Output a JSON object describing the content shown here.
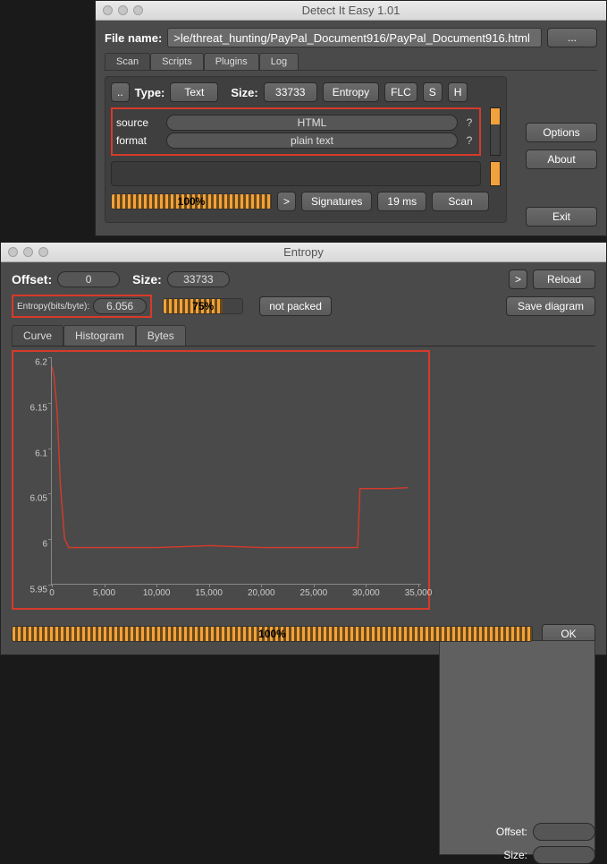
{
  "window1": {
    "title": "Detect It Easy 1.01",
    "file_label": "File name:",
    "file_value": ">le/threat_hunting/PayPal_Document916/PayPal_Document916.html",
    "file_browse": "...",
    "tabs": [
      "Scan",
      "Scripts",
      "Plugins",
      "Log"
    ],
    "active_tab": 0,
    "dd_btn": "..",
    "type_label": "Type:",
    "type_value": "Text",
    "size_label": "Size:",
    "size_value": "33733",
    "entropy_btn": "Entropy",
    "flc_btn": "FLC",
    "s_btn": "S",
    "h_btn": "H",
    "results": [
      {
        "label": "source",
        "value": "HTML"
      },
      {
        "label": "format",
        "value": "plain text"
      }
    ],
    "progress_pct": "100%",
    "progress_val": 100,
    "arrow_btn": ">",
    "signatures_btn": "Signatures",
    "time_btn": "19 ms",
    "scan_btn": "Scan",
    "options_btn": "Options",
    "about_btn": "About",
    "exit_btn": "Exit"
  },
  "window2": {
    "title": "Entropy",
    "offset_label": "Offset:",
    "offset_value": "0",
    "size_label": "Size:",
    "size_value": "33733",
    "arrow_btn": ">",
    "reload_btn": "Reload",
    "entropy_label": "Entropy(bits/byte):",
    "entropy_value": "6.056",
    "pct_label": "75%",
    "pct_val": 75,
    "packed_label": "not packed",
    "save_btn": "Save diagram",
    "tabs": [
      "Curve",
      "Histogram",
      "Bytes"
    ],
    "active_tab": 0,
    "chart": {
      "ylim": [
        5.95,
        6.2
      ],
      "yticks": [
        5.95,
        6,
        6.05,
        6.1,
        6.15,
        6.2
      ],
      "xlim": [
        0,
        35000
      ],
      "xticks": [
        0,
        5000,
        10000,
        15000,
        20000,
        25000,
        30000,
        35000
      ],
      "line_color": "#d73a2a",
      "background": "#4a4a4a",
      "axis_color": "#888888",
      "series": [
        [
          0,
          6.19
        ],
        [
          200,
          6.18
        ],
        [
          500,
          6.14
        ],
        [
          800,
          6.06
        ],
        [
          1200,
          6.0
        ],
        [
          1600,
          5.99
        ],
        [
          2500,
          5.99
        ],
        [
          5000,
          5.99
        ],
        [
          10000,
          5.99
        ],
        [
          15000,
          5.992
        ],
        [
          20000,
          5.99
        ],
        [
          25000,
          5.99
        ],
        [
          28000,
          5.99
        ],
        [
          29000,
          5.99
        ],
        [
          29200,
          6.055
        ],
        [
          30000,
          6.055
        ],
        [
          32000,
          6.055
        ],
        [
          33733,
          6.056
        ]
      ]
    },
    "side_offset_label": "Offset:",
    "side_size_label": "Size:",
    "bottom_pct": "100%",
    "bottom_val": 100,
    "ok_btn": "OK"
  }
}
